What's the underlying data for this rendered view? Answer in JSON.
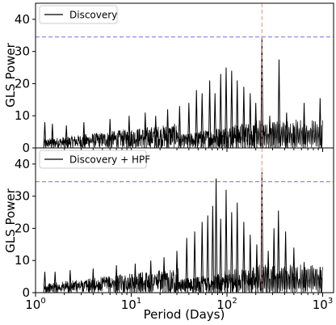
{
  "chart_data": [
    {
      "type": "line",
      "panel": "top",
      "ylabel": "GLS Power",
      "xlabel": "",
      "xscale": "log",
      "xlim": [
        1.0,
        1300
      ],
      "ylim": [
        0,
        45
      ],
      "yticks": [
        "0",
        "10",
        "20",
        "30",
        "40"
      ],
      "legend": {
        "placement": "top-left",
        "entries": [
          "Discovery"
        ]
      },
      "threshold_line": {
        "y": 34.5,
        "color": "#6f6ff0",
        "style": "dashed"
      },
      "marked_period": {
        "x": 232,
        "color": "#f08a8a",
        "style": "dashed"
      },
      "series": [
        {
          "name": "Discovery",
          "color": "#000000"
        }
      ],
      "peaks": [
        {
          "x": 1.25,
          "y": 8
        },
        {
          "x": 1.5,
          "y": 7.5
        },
        {
          "x": 2.1,
          "y": 7
        },
        {
          "x": 3.2,
          "y": 8
        },
        {
          "x": 6.0,
          "y": 9
        },
        {
          "x": 9.5,
          "y": 10
        },
        {
          "x": 14,
          "y": 11
        },
        {
          "x": 18,
          "y": 10
        },
        {
          "x": 24,
          "y": 12
        },
        {
          "x": 32,
          "y": 13
        },
        {
          "x": 40,
          "y": 14
        },
        {
          "x": 48,
          "y": 18
        },
        {
          "x": 55,
          "y": 17
        },
        {
          "x": 66,
          "y": 21
        },
        {
          "x": 75,
          "y": 17
        },
        {
          "x": 86,
          "y": 23
        },
        {
          "x": 98,
          "y": 25
        },
        {
          "x": 112,
          "y": 24
        },
        {
          "x": 128,
          "y": 21
        },
        {
          "x": 150,
          "y": 19
        },
        {
          "x": 175,
          "y": 17
        },
        {
          "x": 200,
          "y": 14
        },
        {
          "x": 232,
          "y": 34.5
        },
        {
          "x": 280,
          "y": 10
        },
        {
          "x": 310,
          "y": 8
        },
        {
          "x": 350,
          "y": 27.5
        },
        {
          "x": 420,
          "y": 11
        },
        {
          "x": 500,
          "y": 7
        },
        {
          "x": 640,
          "y": 14
        },
        {
          "x": 940,
          "y": 15.5
        }
      ]
    },
    {
      "type": "line",
      "panel": "bottom",
      "ylabel": "GLS Power",
      "xlabel": "Period (Days)",
      "xscale": "log",
      "xlim": [
        1.0,
        1300
      ],
      "ylim": [
        0,
        45
      ],
      "xticks": [
        "10",
        "10",
        "10",
        "10"
      ],
      "xtick_exponents": [
        "0",
        "1",
        "2",
        "3"
      ],
      "yticks": [
        "0",
        "10",
        "20",
        "30",
        "40"
      ],
      "legend": {
        "placement": "top-left",
        "entries": [
          "Discovery + HPF"
        ]
      },
      "threshold_line": {
        "y": 34.5,
        "color": "#6f6ff0",
        "style": "dashed"
      },
      "marked_period": {
        "x": 232,
        "color": "#f08a8a",
        "style": "dashed"
      },
      "series": [
        {
          "name": "Discovery + HPF",
          "color": "#000000"
        }
      ],
      "peaks": [
        {
          "x": 1.25,
          "y": 6.5
        },
        {
          "x": 1.6,
          "y": 6.5
        },
        {
          "x": 2.3,
          "y": 7
        },
        {
          "x": 4.0,
          "y": 7.5
        },
        {
          "x": 7.0,
          "y": 8.5
        },
        {
          "x": 11,
          "y": 9
        },
        {
          "x": 16,
          "y": 10
        },
        {
          "x": 22,
          "y": 11
        },
        {
          "x": 30,
          "y": 13
        },
        {
          "x": 38,
          "y": 17
        },
        {
          "x": 46,
          "y": 19
        },
        {
          "x": 55,
          "y": 22
        },
        {
          "x": 63,
          "y": 24
        },
        {
          "x": 71,
          "y": 27
        },
        {
          "x": 77,
          "y": 35.5
        },
        {
          "x": 86,
          "y": 23
        },
        {
          "x": 98,
          "y": 32
        },
        {
          "x": 112,
          "y": 25
        },
        {
          "x": 128,
          "y": 28
        },
        {
          "x": 150,
          "y": 22
        },
        {
          "x": 175,
          "y": 18
        },
        {
          "x": 205,
          "y": 15
        },
        {
          "x": 232,
          "y": 37.5
        },
        {
          "x": 270,
          "y": 13
        },
        {
          "x": 310,
          "y": 20
        },
        {
          "x": 345,
          "y": 25.5
        },
        {
          "x": 410,
          "y": 19
        },
        {
          "x": 500,
          "y": 14
        },
        {
          "x": 640,
          "y": 9.5
        },
        {
          "x": 940,
          "y": 8
        }
      ]
    }
  ]
}
